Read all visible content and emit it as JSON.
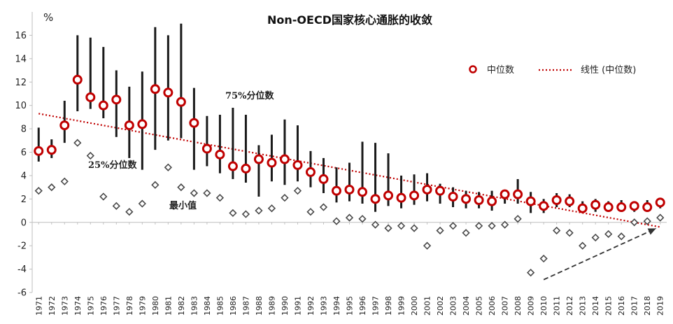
{
  "chart_data": {
    "type": "scatter",
    "title": "Non-OECD国家核心通胀的收敛",
    "ylabel": "%",
    "xlabel": "",
    "ylim": [
      -6,
      18
    ],
    "yticks": [
      -6,
      -4,
      -2,
      0,
      2,
      4,
      6,
      8,
      10,
      12,
      14,
      16
    ],
    "categories": [
      "1971",
      "1972",
      "1973",
      "1974",
      "1975",
      "1976",
      "1977",
      "1978",
      "1979",
      "1980",
      "1981",
      "1982",
      "1983",
      "1984",
      "1985",
      "1986",
      "1987",
      "1988",
      "1989",
      "1990",
      "1991",
      "1992",
      "1993",
      "1994",
      "1995",
      "1996",
      "1997",
      "1998",
      "1999",
      "2000",
      "2001",
      "2002",
      "2003",
      "2004",
      "2005",
      "2006",
      "2007",
      "2008",
      "2009",
      "2010",
      "2011",
      "2012",
      "2013",
      "2014",
      "2015",
      "2016",
      "2017",
      "2018",
      "2019"
    ],
    "series": [
      {
        "name": "中位数",
        "kind": "marker-circle",
        "values": [
          6.1,
          6.2,
          8.3,
          12.2,
          10.7,
          10.0,
          10.5,
          8.3,
          8.4,
          11.4,
          11.1,
          10.3,
          8.5,
          6.3,
          5.8,
          4.8,
          4.6,
          5.4,
          5.1,
          5.4,
          4.9,
          4.3,
          3.7,
          2.7,
          2.8,
          2.6,
          2.0,
          2.3,
          2.1,
          2.3,
          2.8,
          2.7,
          2.2,
          2.0,
          1.9,
          1.8,
          2.4,
          2.4,
          1.8,
          1.4,
          1.9,
          1.8,
          1.2,
          1.5,
          1.3,
          1.3,
          1.4,
          1.3,
          1.7
        ]
      },
      {
        "name": "75%分位数",
        "kind": "bar-top",
        "values": [
          8.1,
          7.1,
          10.4,
          16.0,
          15.8,
          15.0,
          13.0,
          11.6,
          12.9,
          16.7,
          16.0,
          17.0,
          11.5,
          9.1,
          9.2,
          9.8,
          9.2,
          6.6,
          7.5,
          8.8,
          8.3,
          6.1,
          5.5,
          4.7,
          5.1,
          6.9,
          6.8,
          5.9,
          4.0,
          4.1,
          4.2,
          3.3,
          3.0,
          2.7,
          2.6,
          2.7,
          2.5,
          3.7,
          2.6,
          2.0,
          2.5,
          2.4,
          1.8,
          2.0,
          1.8,
          1.9,
          1.8,
          1.9,
          2.1
        ]
      },
      {
        "name": "25%分位数",
        "kind": "bar-bottom",
        "values": [
          5.2,
          5.5,
          6.8,
          9.5,
          9.7,
          8.9,
          7.3,
          5.5,
          4.5,
          6.2,
          7.0,
          7.2,
          4.5,
          4.8,
          4.2,
          3.7,
          3.4,
          2.2,
          3.5,
          3.2,
          3.5,
          3.0,
          2.5,
          1.7,
          1.8,
          1.6,
          0.9,
          1.4,
          1.2,
          1.5,
          1.8,
          1.6,
          1.3,
          1.2,
          1.2,
          1.0,
          1.6,
          1.6,
          0.8,
          0.8,
          1.3,
          1.3,
          0.9,
          0.9,
          0.9,
          0.9,
          0.9,
          0.9,
          1.2
        ]
      },
      {
        "name": "最小值",
        "kind": "marker-diamond",
        "values": [
          2.7,
          3.0,
          3.5,
          6.8,
          5.7,
          2.2,
          1.4,
          0.9,
          1.6,
          3.2,
          4.7,
          3.0,
          2.5,
          2.5,
          2.1,
          0.8,
          0.7,
          1.0,
          1.2,
          2.1,
          2.7,
          0.9,
          1.3,
          0.1,
          0.4,
          0.3,
          -0.2,
          -0.5,
          -0.3,
          -0.5,
          -2.0,
          -0.7,
          -0.3,
          -0.9,
          -0.3,
          -0.3,
          -0.2,
          0.3,
          -4.3,
          -3.1,
          -0.7,
          -0.9,
          -2.0,
          -1.3,
          -1.0,
          -1.2,
          0.0,
          0.1,
          0.4
        ]
      }
    ],
    "trend": {
      "name": "线性 (中位数)",
      "start": 9.3,
      "end": -0.4
    },
    "annotations": {
      "p75": "75%分位数",
      "p25": "25%分位数",
      "min": "最小值"
    },
    "arrow": {
      "from": {
        "year": "2010",
        "value": -4.9
      },
      "to": {
        "year": "2019",
        "value": -0.4
      }
    },
    "legend": {
      "median": "中位数",
      "trend": "线性 (中位数)",
      "position": "top-right"
    },
    "colors": {
      "median": "#c00000",
      "trend": "#c00000",
      "bar": "#1a1a1a",
      "diamond": "#4a4a4a",
      "axis": "#bfbfbf",
      "arrow": "#333333"
    }
  }
}
